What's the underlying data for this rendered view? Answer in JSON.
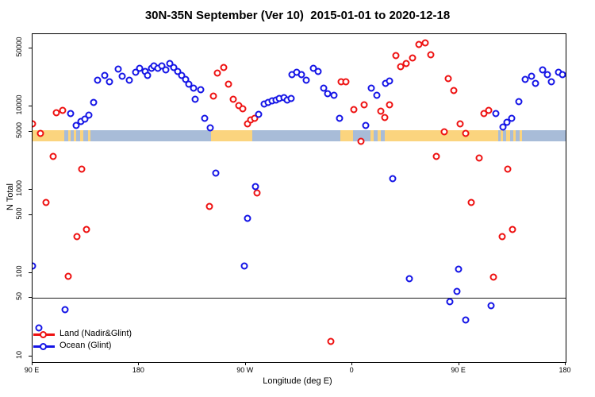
{
  "chart_data": {
    "type": "scatter",
    "title": "30N-35N September (Ver 10)  2015-01-01 to 2020-12-18",
    "xlabel": "Longitude (deg E)",
    "ylabel": "N Total",
    "y_scale": "log",
    "ylim": [
      8.5,
      74000
    ],
    "y_ticks": [
      50000,
      10000,
      5000,
      1000,
      500,
      100,
      50,
      10
    ],
    "x_axis_span_deg": 450,
    "x_ticks": [
      {
        "pos": 0,
        "label": "90 E"
      },
      {
        "pos": 90,
        "label": "180"
      },
      {
        "pos": 180,
        "label": "90 W"
      },
      {
        "pos": 270,
        "label": "0"
      },
      {
        "pos": 360,
        "label": "90 E"
      },
      {
        "pos": 450,
        "label": "180"
      }
    ],
    "reference_line_value": 50,
    "map_band": {
      "value_top": 5200,
      "value_bottom": 3800,
      "ocean_color": "#a8bcd8",
      "land_color": "#fbd47e",
      "land_segments": [
        {
          "from": 0,
          "to": 27
        },
        {
          "from": 30,
          "to": 32
        },
        {
          "from": 35,
          "to": 37
        },
        {
          "from": 40,
          "to": 43
        },
        {
          "from": 47,
          "to": 49
        },
        {
          "from": 151,
          "to": 185.5
        },
        {
          "from": 260,
          "to": 270.5
        },
        {
          "from": 285,
          "to": 288
        },
        {
          "from": 291,
          "to": 294
        },
        {
          "from": 297,
          "to": 393
        },
        {
          "from": 395,
          "to": 397
        },
        {
          "from": 400,
          "to": 403
        },
        {
          "from": 406,
          "to": 408
        },
        {
          "from": 411,
          "to": 413
        }
      ]
    },
    "series": [
      {
        "name": "Land (Nadir&Glint)",
        "color": "#ee1111",
        "points": [
          {
            "x": 0,
            "n": 6200
          },
          {
            "x": 6.7,
            "n": 4700
          },
          {
            "x": 11.4,
            "n": 710
          },
          {
            "x": 17.4,
            "n": 2500
          },
          {
            "x": 20,
            "n": 8500
          },
          {
            "x": 25.4,
            "n": 9000
          },
          {
            "x": 30.1,
            "n": 92
          },
          {
            "x": 37.5,
            "n": 275
          },
          {
            "x": 41.5,
            "n": 1750
          },
          {
            "x": 45.5,
            "n": 330
          },
          {
            "x": 149.3,
            "n": 635
          },
          {
            "x": 152.7,
            "n": 13200
          },
          {
            "x": 156,
            "n": 25300
          },
          {
            "x": 161.4,
            "n": 29600
          },
          {
            "x": 165.4,
            "n": 18700
          },
          {
            "x": 169.4,
            "n": 12300
          },
          {
            "x": 174.1,
            "n": 10300
          },
          {
            "x": 177.4,
            "n": 9400
          },
          {
            "x": 181.5,
            "n": 6200
          },
          {
            "x": 184.2,
            "n": 6900
          },
          {
            "x": 187.5,
            "n": 7200
          },
          {
            "x": 189.5,
            "n": 920
          },
          {
            "x": 251.8,
            "n": 15
          },
          {
            "x": 260.5,
            "n": 19800
          },
          {
            "x": 264.5,
            "n": 19800
          },
          {
            "x": 271.2,
            "n": 9200
          },
          {
            "x": 277.2,
            "n": 3800
          },
          {
            "x": 279.9,
            "n": 10500
          },
          {
            "x": 294,
            "n": 8700
          },
          {
            "x": 297.3,
            "n": 7400
          },
          {
            "x": 301.3,
            "n": 10500
          },
          {
            "x": 306.7,
            "n": 41000
          },
          {
            "x": 310.7,
            "n": 30200
          },
          {
            "x": 315.4,
            "n": 33100
          },
          {
            "x": 320.8,
            "n": 38000
          },
          {
            "x": 326.1,
            "n": 56000
          },
          {
            "x": 331.5,
            "n": 57500
          },
          {
            "x": 336.2,
            "n": 42000
          },
          {
            "x": 340.8,
            "n": 2500
          },
          {
            "x": 347.5,
            "n": 5000
          },
          {
            "x": 350.9,
            "n": 21700
          },
          {
            "x": 355.6,
            "n": 15600
          },
          {
            "x": 360.9,
            "n": 6200
          },
          {
            "x": 365.6,
            "n": 4700
          },
          {
            "x": 370.3,
            "n": 700
          },
          {
            "x": 377,
            "n": 2400
          },
          {
            "x": 381,
            "n": 8300
          },
          {
            "x": 385,
            "n": 8900
          },
          {
            "x": 389,
            "n": 90
          },
          {
            "x": 396.4,
            "n": 275
          },
          {
            "x": 401.1,
            "n": 1750
          },
          {
            "x": 405.1,
            "n": 335
          }
        ]
      },
      {
        "name": "Ocean (Glint)",
        "color": "#1414e6",
        "points": [
          {
            "x": 0,
            "n": 120
          },
          {
            "x": 5.4,
            "n": 22
          },
          {
            "x": 27.5,
            "n": 36
          },
          {
            "x": 32.1,
            "n": 8300
          },
          {
            "x": 36.8,
            "n": 5900
          },
          {
            "x": 40.8,
            "n": 6600
          },
          {
            "x": 44.2,
            "n": 7100
          },
          {
            "x": 47.5,
            "n": 7800
          },
          {
            "x": 51.6,
            "n": 11200
          },
          {
            "x": 54.9,
            "n": 20800
          },
          {
            "x": 60.9,
            "n": 23600
          },
          {
            "x": 65,
            "n": 19900
          },
          {
            "x": 72.3,
            "n": 28300
          },
          {
            "x": 75.7,
            "n": 23300
          },
          {
            "x": 81.7,
            "n": 20800
          },
          {
            "x": 87,
            "n": 25900
          },
          {
            "x": 90.4,
            "n": 29000
          },
          {
            "x": 95.1,
            "n": 26500
          },
          {
            "x": 97.1,
            "n": 23600
          },
          {
            "x": 100.4,
            "n": 29000
          },
          {
            "x": 102.5,
            "n": 31000
          },
          {
            "x": 105.8,
            "n": 29000
          },
          {
            "x": 109.2,
            "n": 31000
          },
          {
            "x": 112.5,
            "n": 27700
          },
          {
            "x": 115.8,
            "n": 33100
          },
          {
            "x": 119.2,
            "n": 29700
          },
          {
            "x": 122.5,
            "n": 26500
          },
          {
            "x": 125.9,
            "n": 23600
          },
          {
            "x": 129.2,
            "n": 21200
          },
          {
            "x": 131.9,
            "n": 18600
          },
          {
            "x": 135.9,
            "n": 16600
          },
          {
            "x": 137.3,
            "n": 12300
          },
          {
            "x": 142,
            "n": 15900
          },
          {
            "x": 145.3,
            "n": 7200
          },
          {
            "x": 150,
            "n": 5600
          },
          {
            "x": 154.7,
            "n": 1600
          },
          {
            "x": 178.8,
            "n": 120
          },
          {
            "x": 181.5,
            "n": 450
          },
          {
            "x": 188.2,
            "n": 1100
          },
          {
            "x": 190.8,
            "n": 8100
          },
          {
            "x": 195.5,
            "n": 10700
          },
          {
            "x": 198.9,
            "n": 11200
          },
          {
            "x": 202.2,
            "n": 11700
          },
          {
            "x": 205.6,
            "n": 12000
          },
          {
            "x": 208.3,
            "n": 12500
          },
          {
            "x": 212.3,
            "n": 12800
          },
          {
            "x": 215,
            "n": 12000
          },
          {
            "x": 218.3,
            "n": 12500
          },
          {
            "x": 219,
            "n": 24100
          },
          {
            "x": 223,
            "n": 25900
          },
          {
            "x": 227,
            "n": 24100
          },
          {
            "x": 231,
            "n": 20800
          },
          {
            "x": 237,
            "n": 29000
          },
          {
            "x": 241.1,
            "n": 26500
          },
          {
            "x": 245.8,
            "n": 16600
          },
          {
            "x": 249.1,
            "n": 14300
          },
          {
            "x": 254.5,
            "n": 13700
          },
          {
            "x": 259.2,
            "n": 7200
          },
          {
            "x": 281.3,
            "n": 5900
          },
          {
            "x": 285.9,
            "n": 16600
          },
          {
            "x": 290.6,
            "n": 13700
          },
          {
            "x": 298,
            "n": 19100
          },
          {
            "x": 301.3,
            "n": 20400
          },
          {
            "x": 304,
            "n": 1350
          },
          {
            "x": 318.1,
            "n": 85
          },
          {
            "x": 352.3,
            "n": 45
          },
          {
            "x": 358.3,
            "n": 60
          },
          {
            "x": 359.6,
            "n": 110
          },
          {
            "x": 365.6,
            "n": 27
          },
          {
            "x": 387,
            "n": 40
          },
          {
            "x": 391.1,
            "n": 8300
          },
          {
            "x": 397.1,
            "n": 5700
          },
          {
            "x": 400.4,
            "n": 6400
          },
          {
            "x": 404.4,
            "n": 7200
          },
          {
            "x": 410.4,
            "n": 11500
          },
          {
            "x": 415.8,
            "n": 21300
          },
          {
            "x": 421.2,
            "n": 23300
          },
          {
            "x": 424.5,
            "n": 19100
          },
          {
            "x": 430.5,
            "n": 27700
          },
          {
            "x": 434.5,
            "n": 24000
          },
          {
            "x": 437.8,
            "n": 19900
          },
          {
            "x": 443.8,
            "n": 25900
          },
          {
            "x": 447.2,
            "n": 24100
          }
        ]
      }
    ]
  },
  "legend": {
    "items": [
      {
        "label": "Land (Nadir&Glint)",
        "color": "#ee1111"
      },
      {
        "label": "Ocean (Glint)",
        "color": "#1414e6"
      }
    ]
  }
}
